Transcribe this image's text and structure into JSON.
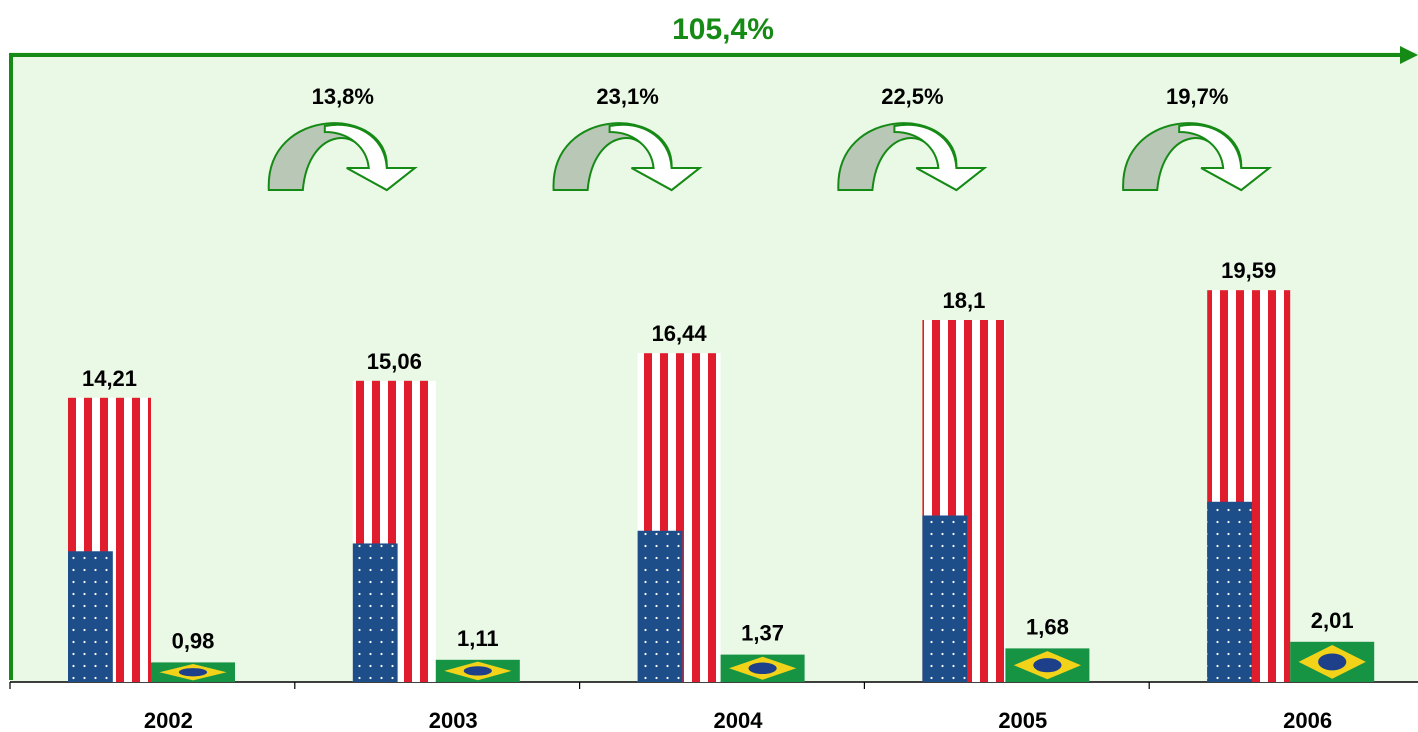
{
  "colors": {
    "background": "#eaf8e6",
    "accent_green": "#158a15",
    "flag_red": "#e01d2c",
    "flag_blue": "#1e4e8a",
    "brazil_green": "#169443",
    "brazil_yellow": "#f2d31a",
    "arrow_fill": "#b9c8b6"
  },
  "chart_data": {
    "type": "bar",
    "categories": [
      "2002",
      "2003",
      "2004",
      "2005",
      "2006"
    ],
    "series": [
      {
        "values": [
          14.21,
          15.06,
          16.44,
          18.1,
          19.59
        ],
        "labels": [
          "14,21",
          "15,06",
          "16,44",
          "18,1",
          "19,59"
        ],
        "fill": "us-flag"
      },
      {
        "values": [
          0.98,
          1.11,
          1.37,
          1.68,
          2.01
        ],
        "labels": [
          "0,98",
          "1,11",
          "1,37",
          "1,68",
          "2,01"
        ],
        "fill": "brazil-flag"
      }
    ],
    "growth_labels": [
      "13,8%",
      "23,1%",
      "22,5%",
      "19,7%"
    ],
    "total_growth_label": "105,4%",
    "title": "",
    "xlabel": "",
    "ylabel": "",
    "ylim": [
      0,
      31.5
    ],
    "grid": false,
    "legend": "none"
  }
}
